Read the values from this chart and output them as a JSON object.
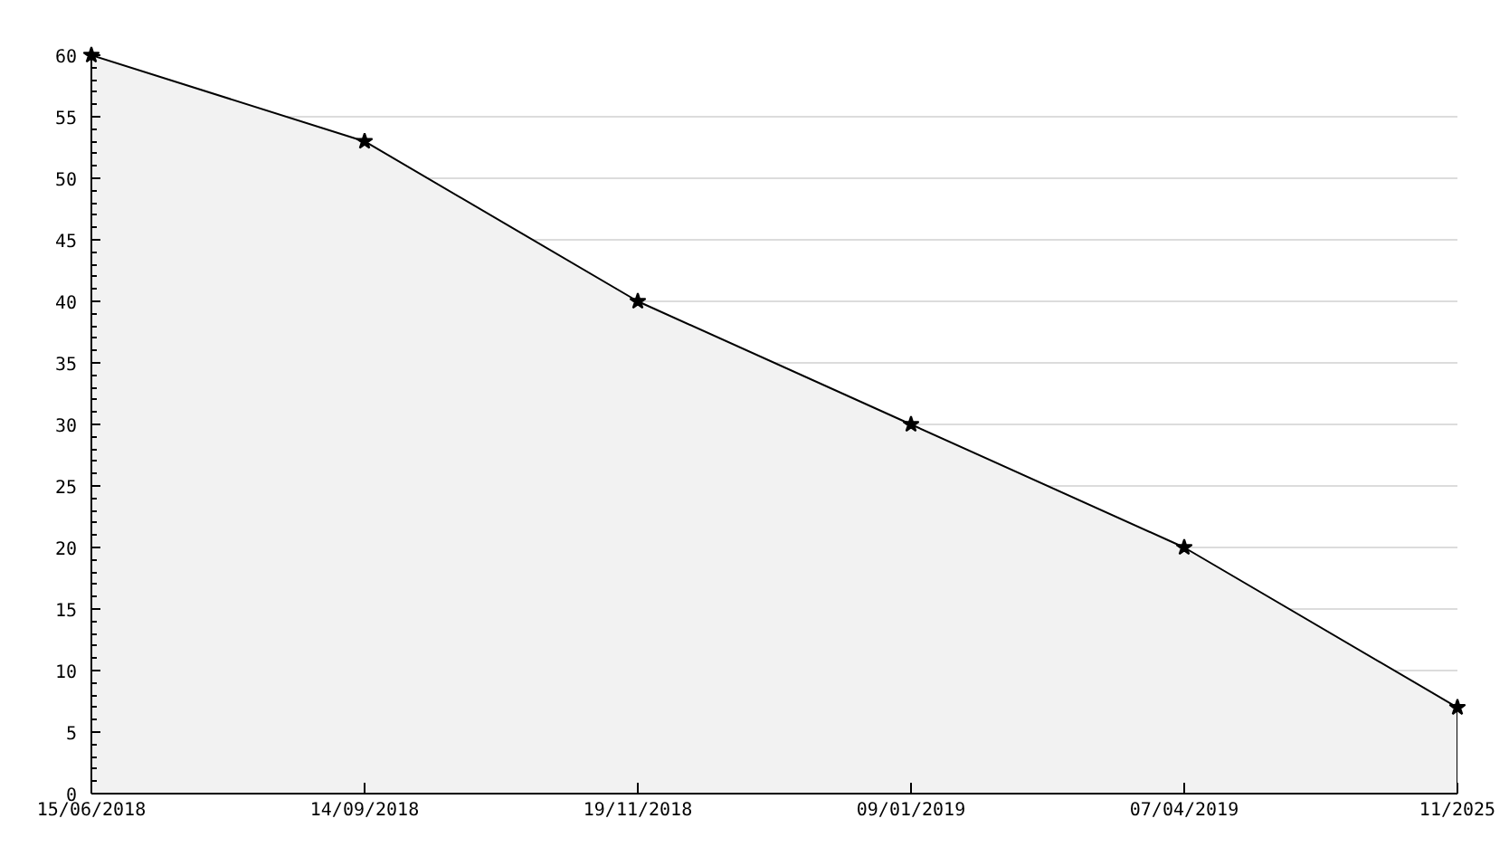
{
  "chart_data": {
    "type": "area",
    "categories": [
      "15/06/2018",
      "14/09/2018",
      "19/11/2018",
      "09/01/2019",
      "07/04/2019",
      "11/2025"
    ],
    "series": [
      {
        "color": "#f2f2f2",
        "values": [
          60,
          53,
          40,
          30,
          20,
          7
        ]
      }
    ],
    "ylim": [
      0,
      60
    ],
    "yticks": [
      0,
      5,
      10,
      15,
      20,
      25,
      30,
      35,
      40,
      45,
      50,
      55,
      60
    ],
    "grid": "y",
    "marker": "star"
  }
}
